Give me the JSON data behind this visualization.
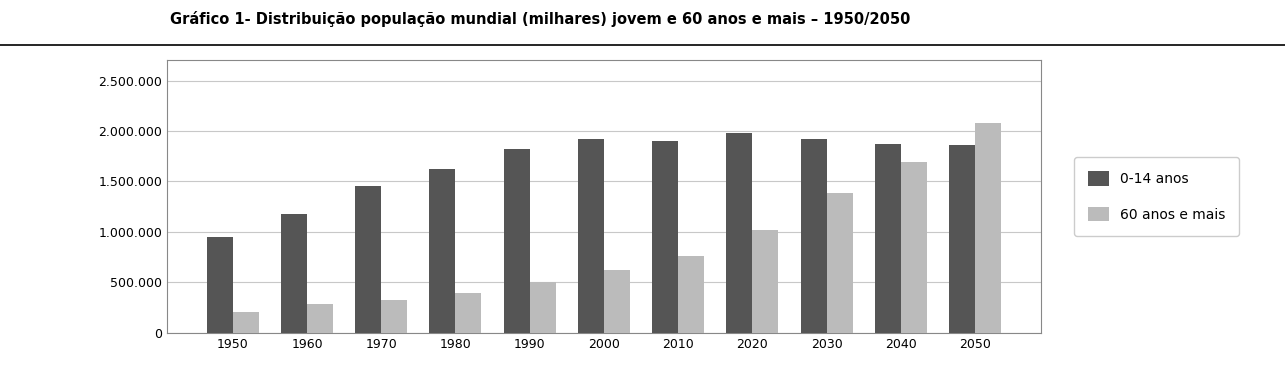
{
  "title": "Gráfico 1- Distribuição população mundial (milhares) jovem e 60 anos e mais – 1950/2050",
  "years": [
    "1950",
    "1960",
    "1970",
    "1980",
    "1990",
    "2000",
    "2010",
    "2020",
    "2030",
    "2040",
    "2050"
  ],
  "values_0_14": [
    950000,
    1175000,
    1450000,
    1620000,
    1820000,
    1920000,
    1900000,
    1980000,
    1920000,
    1870000,
    1860000
  ],
  "values_60plus": [
    205000,
    280000,
    320000,
    395000,
    500000,
    625000,
    760000,
    1020000,
    1390000,
    1695000,
    2080000
  ],
  "bar_color_young": "#555555",
  "bar_color_old": "#bbbbbb",
  "legend_labels": [
    "0-14 anos",
    "60 anos e mais"
  ],
  "ylim": [
    0,
    2700000
  ],
  "ytick_values": [
    0,
    500000,
    1000000,
    1500000,
    2000000,
    2500000
  ],
  "ytick_labels": [
    "0",
    "500.000",
    "1.000.000",
    "1.500.000",
    "2.000.000",
    "2.500.000"
  ],
  "title_fontsize": 10.5,
  "tick_fontsize": 9,
  "legend_fontsize": 10,
  "background_color": "#ffffff",
  "plot_bg_color": "#ffffff",
  "grid_color": "#c8c8c8"
}
